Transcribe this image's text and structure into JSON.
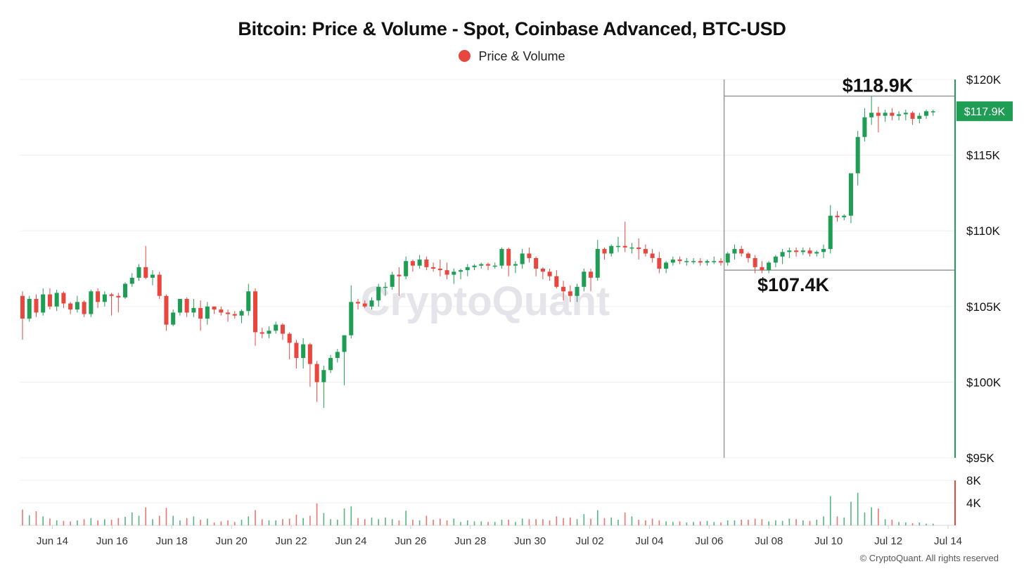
{
  "colors": {
    "up": "#1f9d55",
    "down": "#e8473f",
    "grid": "#efefef",
    "axis_green": "#1f9d55",
    "legend_dot": "#e8473f",
    "range_line": "#9a9a9a"
  },
  "watermark": "CryptoQuant",
  "copyright": "© CryptoQuant. All rights reserved",
  "chart_data": {
    "type": "candlestick",
    "title": "Bitcoin: Price & Volume - Spot, Coinbase Advanced, BTC-USD",
    "legend": [
      {
        "label": "Price & Volume",
        "color": "#e8473f"
      }
    ],
    "price_axis": {
      "min": 95000,
      "max": 120000,
      "ticks": [
        120000,
        115000,
        110000,
        105000,
        100000,
        95000
      ],
      "tick_labels": [
        "$120K",
        "$115K",
        "$110K",
        "$105K",
        "$100K",
        "$95K"
      ]
    },
    "volume_axis": {
      "min": 0,
      "max": 8000,
      "ticks": [
        8000,
        4000
      ],
      "tick_labels": [
        "8K",
        "4K"
      ]
    },
    "x_axis": {
      "start": "2025-06-13",
      "end": "2025-07-14",
      "tick_labels": [
        "Jun 14",
        "Jun 16",
        "Jun 18",
        "Jun 20",
        "Jun 22",
        "Jun 24",
        "Jun 26",
        "Jun 28",
        "Jun 30",
        "Jul 02",
        "Jul 04",
        "Jul 06",
        "Jul 08",
        "Jul 10",
        "Jul 12",
        "Jul 14"
      ]
    },
    "current_price_label": "$117.9K",
    "current_price": 117900,
    "annotations": [
      {
        "text": "$118.9K",
        "value": 118900
      },
      {
        "text": "$107.4K",
        "value": 107400
      }
    ],
    "annotation_range_start": "2025-07-06T12:00",
    "candles": [
      [
        105700,
        106000,
        102800,
        104200,
        2800
      ],
      [
        104200,
        105700,
        104000,
        105500,
        1800
      ],
      [
        105500,
        105800,
        104300,
        104600,
        2500
      ],
      [
        104600,
        106200,
        104400,
        105800,
        1600
      ],
      [
        105800,
        106200,
        104800,
        105000,
        1200
      ],
      [
        105000,
        106100,
        104700,
        105900,
        900
      ],
      [
        105900,
        106000,
        104900,
        105200,
        800
      ],
      [
        105200,
        105300,
        104500,
        104800,
        700
      ],
      [
        104800,
        105700,
        104600,
        105300,
        900
      ],
      [
        105300,
        105400,
        104300,
        104500,
        1100
      ],
      [
        104500,
        106100,
        104300,
        106000,
        1300
      ],
      [
        106000,
        106200,
        104900,
        105300,
        900
      ],
      [
        105300,
        106000,
        105000,
        105800,
        1100
      ],
      [
        105800,
        105900,
        104400,
        105700,
        1000
      ],
      [
        105700,
        105900,
        104600,
        105600,
        1300
      ],
      [
        105600,
        106600,
        105500,
        106500,
        1500
      ],
      [
        106500,
        107200,
        106300,
        106900,
        2300
      ],
      [
        106900,
        107800,
        106700,
        107600,
        1700
      ],
      [
        107600,
        109000,
        106800,
        106900,
        3200
      ],
      [
        106900,
        107400,
        106400,
        107100,
        1100
      ],
      [
        107100,
        107300,
        105500,
        105700,
        1700
      ],
      [
        105700,
        105800,
        103400,
        103800,
        3100
      ],
      [
        103800,
        104800,
        103700,
        104600,
        1700
      ],
      [
        104600,
        105500,
        104400,
        105500,
        900
      ],
      [
        105500,
        105600,
        104300,
        104600,
        1300
      ],
      [
        104600,
        105500,
        104300,
        104900,
        1600
      ],
      [
        104900,
        105400,
        103400,
        104200,
        1000
      ],
      [
        104200,
        105300,
        103800,
        105000,
        1200
      ],
      [
        105000,
        105000,
        104500,
        104800,
        500
      ],
      [
        104800,
        105000,
        104400,
        104600,
        700
      ],
      [
        104600,
        104800,
        104000,
        104500,
        900
      ],
      [
        104500,
        104700,
        104200,
        104400,
        600
      ],
      [
        104400,
        104800,
        103900,
        104700,
        1000
      ],
      [
        104700,
        106500,
        104400,
        106000,
        1600
      ],
      [
        106000,
        106200,
        102400,
        103300,
        2700
      ],
      [
        103300,
        103600,
        102900,
        103200,
        1100
      ],
      [
        103200,
        103700,
        102900,
        103400,
        900
      ],
      [
        103400,
        104000,
        103200,
        103800,
        900
      ],
      [
        103800,
        103900,
        102800,
        103200,
        1100
      ],
      [
        103200,
        103300,
        101500,
        102600,
        1200
      ],
      [
        102600,
        102800,
        100900,
        101600,
        1900
      ],
      [
        101600,
        102900,
        100900,
        102500,
        1300
      ],
      [
        102500,
        102600,
        99700,
        101200,
        1700
      ],
      [
        101200,
        101400,
        98700,
        100000,
        3900
      ],
      [
        100000,
        101100,
        98300,
        100800,
        2200
      ],
      [
        100800,
        101800,
        100600,
        101600,
        1100
      ],
      [
        101600,
        102200,
        101300,
        102000,
        1000
      ],
      [
        102000,
        103000,
        99800,
        103100,
        3000
      ],
      [
        103100,
        106400,
        102900,
        105300,
        3400
      ],
      [
        105300,
        105500,
        104800,
        105200,
        1300
      ],
      [
        105200,
        105400,
        104900,
        105000,
        1100
      ],
      [
        105000,
        105600,
        104800,
        105400,
        1400
      ],
      [
        105400,
        106500,
        105000,
        106300,
        1100
      ],
      [
        106300,
        106600,
        105700,
        106300,
        1400
      ],
      [
        106300,
        107300,
        106100,
        107100,
        1100
      ],
      [
        107100,
        107600,
        105700,
        107000,
        900
      ],
      [
        107000,
        108300,
        106800,
        108000,
        2600
      ],
      [
        108000,
        108100,
        107300,
        107700,
        1000
      ],
      [
        107700,
        108400,
        107500,
        108100,
        900
      ],
      [
        108100,
        108300,
        107400,
        107600,
        1700
      ],
      [
        107600,
        107900,
        107300,
        107500,
        1000
      ],
      [
        107500,
        108100,
        107000,
        107400,
        1200
      ],
      [
        107400,
        107900,
        106800,
        107100,
        900
      ],
      [
        107100,
        107500,
        106500,
        107300,
        1200
      ],
      [
        107300,
        107500,
        106800,
        107400,
        600
      ],
      [
        107400,
        107800,
        107000,
        107600,
        900
      ],
      [
        107600,
        107800,
        107400,
        107700,
        700
      ],
      [
        107700,
        107900,
        107500,
        107800,
        700
      ],
      [
        107800,
        107900,
        107400,
        107700,
        600
      ],
      [
        107700,
        107900,
        107500,
        107700,
        600
      ],
      [
        107700,
        108900,
        107500,
        108800,
        1000
      ],
      [
        108800,
        108900,
        107000,
        107700,
        1000
      ],
      [
        107700,
        108000,
        107200,
        107800,
        600
      ],
      [
        107800,
        108800,
        107500,
        108500,
        1200
      ],
      [
        108500,
        108900,
        107900,
        108200,
        1100
      ],
      [
        108200,
        108300,
        107000,
        107500,
        1100
      ],
      [
        107500,
        107600,
        106800,
        107300,
        1100
      ],
      [
        107300,
        107500,
        106700,
        107000,
        900
      ],
      [
        107000,
        107400,
        106200,
        106300,
        1600
      ],
      [
        106300,
        106700,
        105400,
        106000,
        1300
      ],
      [
        106000,
        106400,
        105300,
        105700,
        1400
      ],
      [
        105700,
        106500,
        105300,
        106300,
        1100
      ],
      [
        106300,
        107500,
        106000,
        107300,
        2000
      ],
      [
        107300,
        107500,
        106000,
        106900,
        1200
      ],
      [
        106900,
        109400,
        106700,
        108800,
        2700
      ],
      [
        108800,
        108900,
        108100,
        108500,
        1300
      ],
      [
        108500,
        109100,
        108300,
        109000,
        1400
      ],
      [
        109000,
        109600,
        108600,
        109000,
        1000
      ],
      [
        109000,
        110600,
        108600,
        108900,
        2300
      ],
      [
        108900,
        109200,
        108500,
        108900,
        1600
      ],
      [
        108900,
        109500,
        108100,
        108800,
        1000
      ],
      [
        108800,
        109100,
        108300,
        108500,
        900
      ],
      [
        108500,
        108800,
        107900,
        108200,
        1200
      ],
      [
        108200,
        108600,
        107200,
        107500,
        900
      ],
      [
        107500,
        108000,
        107200,
        107900,
        700
      ],
      [
        107900,
        108300,
        107700,
        108100,
        600
      ],
      [
        108100,
        108300,
        107800,
        108000,
        700
      ],
      [
        108000,
        108200,
        107700,
        108000,
        500
      ],
      [
        108000,
        108200,
        107800,
        108000,
        600
      ],
      [
        108000,
        108200,
        107700,
        107900,
        700
      ],
      [
        107900,
        108100,
        107700,
        108000,
        800
      ],
      [
        108000,
        108300,
        107800,
        108000,
        600
      ],
      [
        108000,
        108200,
        107700,
        107900,
        500
      ],
      [
        107900,
        108600,
        107700,
        108500,
        900
      ],
      [
        108500,
        109100,
        108100,
        108800,
        900
      ],
      [
        108800,
        109000,
        108300,
        108500,
        1000
      ],
      [
        108500,
        108600,
        107900,
        108200,
        1000
      ],
      [
        108200,
        108400,
        107200,
        107600,
        1200
      ],
      [
        107600,
        108000,
        107200,
        107400,
        1100
      ],
      [
        107400,
        108000,
        107200,
        107900,
        700
      ],
      [
        107900,
        108400,
        107600,
        108300,
        900
      ],
      [
        108300,
        108800,
        107800,
        108600,
        800
      ],
      [
        108600,
        108900,
        108200,
        108700,
        1200
      ],
      [
        108700,
        108900,
        108300,
        108600,
        1100
      ],
      [
        108600,
        108900,
        108400,
        108700,
        900
      ],
      [
        108700,
        108900,
        108300,
        108500,
        800
      ],
      [
        108500,
        108700,
        108300,
        108600,
        1000
      ],
      [
        108600,
        109100,
        108200,
        108800,
        1600
      ],
      [
        108800,
        111700,
        108500,
        111000,
        5200
      ],
      [
        111000,
        111300,
        110600,
        110900,
        1600
      ],
      [
        110900,
        111100,
        110700,
        111000,
        1400
      ],
      [
        111000,
        113800,
        110500,
        113800,
        4200
      ],
      [
        113800,
        116600,
        113000,
        116200,
        5800
      ],
      [
        116200,
        118100,
        115900,
        117500,
        2300
      ],
      [
        117500,
        118900,
        117000,
        117800,
        3200
      ],
      [
        117800,
        118200,
        116500,
        117600,
        3000
      ],
      [
        117600,
        118000,
        117200,
        117800,
        1100
      ],
      [
        117800,
        118100,
        117300,
        117600,
        1000
      ],
      [
        117600,
        117900,
        117300,
        117700,
        600
      ],
      [
        117700,
        118000,
        117300,
        117800,
        500
      ],
      [
        117800,
        117900,
        117000,
        117400,
        400
      ],
      [
        117400,
        117800,
        117100,
        117600,
        500
      ],
      [
        117600,
        118000,
        117400,
        117900,
        300
      ],
      [
        117900,
        118000,
        117600,
        117900,
        300
      ]
    ]
  }
}
